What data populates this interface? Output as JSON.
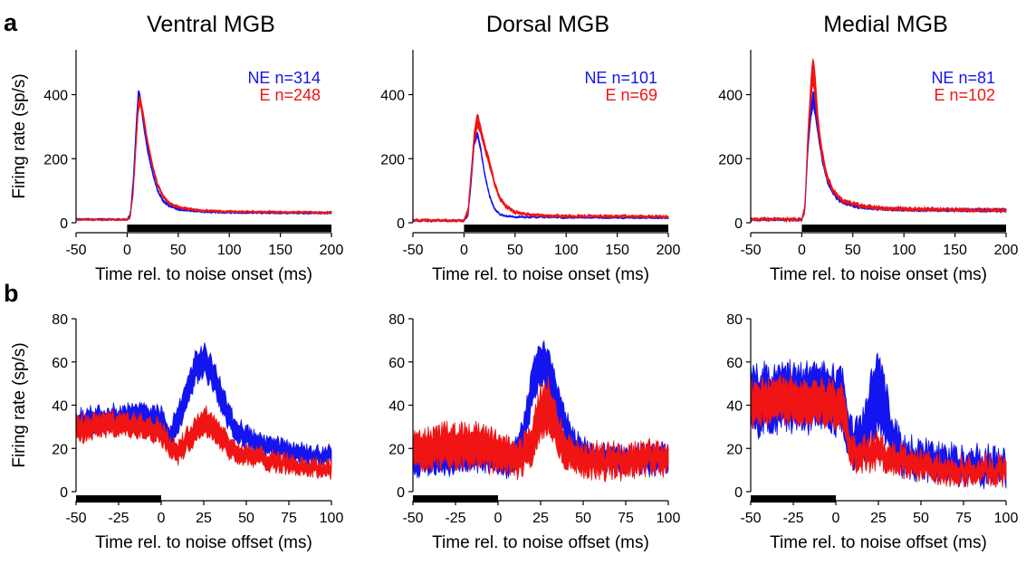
{
  "panel_labels": [
    "a",
    "b"
  ],
  "colors": {
    "NE": "#1414f0",
    "E": "#f01414",
    "stim": "#000000"
  },
  "chart_data": [
    {
      "type": "area",
      "row": "a",
      "title": "Ventral MGB",
      "xlabel": "Time rel. to noise onset (ms)",
      "ylabel": "Firing rate (sp/s)",
      "xlim": [
        -50,
        200
      ],
      "ylim": [
        0,
        540
      ],
      "xticks": [
        -50,
        0,
        50,
        100,
        150,
        200
      ],
      "yticks": [
        0,
        200,
        400
      ],
      "stimulus": [
        0,
        200
      ],
      "legend": [
        "NE n=314",
        "E n=248"
      ],
      "series": [
        {
          "color": "NE",
          "noise": 2,
          "x": [
            -50,
            0,
            3,
            6,
            9,
            11,
            13,
            16,
            20,
            25,
            30,
            35,
            40,
            50,
            60,
            80,
            100,
            150,
            200
          ],
          "lower": [
            9,
            9,
            20,
            120,
            300,
            380,
            370,
            300,
            220,
            150,
            95,
            65,
            52,
            40,
            36,
            32,
            30,
            29,
            29
          ],
          "upper": [
            12,
            12,
            26,
            140,
            320,
            420,
            395,
            320,
            235,
            160,
            102,
            72,
            58,
            45,
            40,
            36,
            34,
            33,
            33
          ]
        },
        {
          "color": "E",
          "noise": 2,
          "x": [
            -50,
            0,
            3,
            6,
            9,
            11,
            13,
            16,
            20,
            25,
            30,
            35,
            40,
            50,
            60,
            80,
            100,
            150,
            200
          ],
          "lower": [
            8,
            8,
            15,
            90,
            250,
            350,
            370,
            320,
            245,
            170,
            112,
            80,
            60,
            46,
            40,
            35,
            33,
            31,
            30
          ],
          "upper": [
            11,
            11,
            20,
            105,
            275,
            385,
            395,
            340,
            260,
            182,
            122,
            88,
            67,
            52,
            45,
            39,
            37,
            35,
            34
          ]
        }
      ]
    },
    {
      "type": "area",
      "row": "a",
      "title": "Dorsal MGB",
      "xlabel": "Time rel. to noise onset (ms)",
      "ylabel": "",
      "xlim": [
        -50,
        200
      ],
      "ylim": [
        0,
        540
      ],
      "xticks": [
        -50,
        0,
        50,
        100,
        150,
        200
      ],
      "yticks": [
        0,
        200,
        400
      ],
      "stimulus": [
        0,
        200
      ],
      "legend": [
        "NE n=101",
        "E n=69"
      ],
      "series": [
        {
          "color": "NE",
          "noise": 2,
          "x": [
            -50,
            0,
            4,
            7,
            10,
            13,
            16,
            20,
            25,
            30,
            35,
            40,
            50,
            60,
            80,
            100,
            150,
            200
          ],
          "lower": [
            5,
            5,
            20,
            120,
            240,
            270,
            230,
            150,
            80,
            40,
            25,
            20,
            17,
            16,
            16,
            15,
            14,
            14
          ],
          "upper": [
            8,
            8,
            25,
            130,
            255,
            285,
            245,
            160,
            88,
            45,
            28,
            23,
            20,
            19,
            18,
            17,
            16,
            16
          ]
        },
        {
          "color": "E",
          "noise": 3,
          "x": [
            -50,
            0,
            4,
            7,
            10,
            13,
            16,
            20,
            25,
            30,
            35,
            40,
            50,
            60,
            80,
            100,
            150,
            200
          ],
          "lower": [
            5,
            5,
            30,
            140,
            250,
            300,
            280,
            230,
            175,
            115,
            72,
            50,
            30,
            24,
            20,
            19,
            18,
            17
          ],
          "upper": [
            9,
            9,
            45,
            165,
            285,
            345,
            305,
            250,
            195,
            128,
            82,
            58,
            36,
            29,
            25,
            23,
            22,
            21
          ]
        }
      ]
    },
    {
      "type": "area",
      "row": "a",
      "title": "Medial MGB",
      "xlabel": "Time rel. to noise onset (ms)",
      "ylabel": "",
      "xlim": [
        -50,
        200
      ],
      "ylim": [
        0,
        540
      ],
      "xticks": [
        -50,
        0,
        50,
        100,
        150,
        200
      ],
      "yticks": [
        0,
        200,
        400
      ],
      "stimulus": [
        0,
        200
      ],
      "legend": [
        "NE n=81",
        "E n=102"
      ],
      "series": [
        {
          "color": "NE",
          "noise": 3,
          "x": [
            -50,
            0,
            3,
            6,
            9,
            11,
            13,
            16,
            20,
            25,
            30,
            35,
            40,
            50,
            60,
            80,
            100,
            150,
            200
          ],
          "lower": [
            8,
            8,
            30,
            220,
            330,
            360,
            340,
            270,
            190,
            125,
            92,
            72,
            60,
            50,
            44,
            40,
            38,
            37,
            36
          ],
          "upper": [
            12,
            12,
            40,
            250,
            370,
            410,
            395,
            310,
            215,
            140,
            102,
            80,
            66,
            56,
            50,
            46,
            44,
            43,
            42
          ]
        },
        {
          "color": "E",
          "noise": 4,
          "x": [
            -50,
            0,
            3,
            6,
            9,
            11,
            13,
            16,
            20,
            25,
            30,
            35,
            40,
            50,
            60,
            80,
            100,
            150,
            200
          ],
          "lower": [
            8,
            8,
            40,
            250,
            380,
            440,
            390,
            290,
            200,
            135,
            100,
            80,
            66,
            55,
            48,
            42,
            40,
            38,
            36
          ],
          "upper": [
            12,
            12,
            55,
            290,
            450,
            520,
            470,
            330,
            225,
            150,
            110,
            88,
            73,
            62,
            55,
            48,
            46,
            43,
            41
          ]
        }
      ]
    },
    {
      "type": "area",
      "row": "b",
      "title": "",
      "xlabel": "Time rel. to noise offset (ms)",
      "ylabel": "Firing rate (sp/s)",
      "xlim": [
        -50,
        100
      ],
      "ylim": [
        0,
        80
      ],
      "xticks": [
        -50,
        -25,
        0,
        25,
        50,
        75,
        100
      ],
      "yticks": [
        0,
        20,
        40,
        60,
        80
      ],
      "stimulus": [
        -50,
        0
      ],
      "legend": [],
      "series": [
        {
          "color": "NE",
          "noise": 2.5,
          "x": [
            -50,
            -40,
            -30,
            -20,
            -10,
            0,
            5,
            10,
            15,
            20,
            25,
            30,
            35,
            40,
            45,
            50,
            60,
            70,
            80,
            90,
            100
          ],
          "lower": [
            28,
            30,
            31,
            31,
            32,
            30,
            20,
            28,
            40,
            52,
            55,
            50,
            40,
            30,
            25,
            22,
            18,
            16,
            15,
            14,
            14
          ],
          "upper": [
            35,
            37,
            38,
            38,
            39,
            37,
            28,
            38,
            50,
            62,
            66,
            60,
            50,
            38,
            32,
            28,
            24,
            22,
            20,
            19,
            19
          ]
        },
        {
          "color": "E",
          "noise": 2.5,
          "x": [
            -50,
            -40,
            -30,
            -20,
            -10,
            0,
            5,
            10,
            15,
            20,
            25,
            30,
            35,
            40,
            45,
            50,
            60,
            70,
            80,
            90,
            100
          ],
          "lower": [
            25,
            27,
            28,
            27,
            27,
            24,
            18,
            15,
            20,
            25,
            28,
            26,
            22,
            17,
            15,
            14,
            13,
            11,
            10,
            9,
            9
          ],
          "upper": [
            33,
            34,
            35,
            34,
            34,
            31,
            24,
            21,
            27,
            33,
            37,
            35,
            30,
            24,
            21,
            19,
            18,
            16,
            14,
            13,
            13
          ]
        }
      ]
    },
    {
      "type": "area",
      "row": "b",
      "title": "",
      "xlabel": "Time rel. to noise offset (ms)",
      "ylabel": "",
      "xlim": [
        -50,
        100
      ],
      "ylim": [
        0,
        80
      ],
      "xticks": [
        -50,
        -25,
        0,
        25,
        50,
        75,
        100
      ],
      "yticks": [
        0,
        20,
        40,
        60,
        80
      ],
      "stimulus": [
        -50,
        0
      ],
      "legend": [],
      "series": [
        {
          "color": "NE",
          "noise": 3,
          "x": [
            -50,
            -40,
            -30,
            -20,
            -10,
            0,
            5,
            10,
            15,
            20,
            25,
            30,
            35,
            40,
            45,
            50,
            60,
            70,
            80,
            90,
            100
          ],
          "lower": [
            10,
            11,
            11,
            12,
            12,
            11,
            10,
            12,
            22,
            40,
            52,
            48,
            35,
            25,
            18,
            15,
            12,
            10,
            11,
            11,
            12
          ],
          "upper": [
            18,
            19,
            19,
            20,
            20,
            19,
            18,
            21,
            32,
            55,
            68,
            62,
            48,
            34,
            26,
            22,
            19,
            18,
            18,
            19,
            20
          ]
        },
        {
          "color": "E",
          "noise": 4,
          "x": [
            -50,
            -40,
            -30,
            -20,
            -10,
            0,
            5,
            10,
            15,
            20,
            25,
            30,
            35,
            40,
            45,
            50,
            60,
            70,
            80,
            90,
            100
          ],
          "lower": [
            13,
            14,
            15,
            15,
            14,
            13,
            12,
            10,
            12,
            16,
            28,
            30,
            20,
            14,
            12,
            11,
            10,
            10,
            11,
            12,
            12
          ],
          "upper": [
            24,
            26,
            28,
            28,
            27,
            25,
            22,
            20,
            23,
            30,
            45,
            48,
            34,
            25,
            21,
            19,
            18,
            18,
            19,
            20,
            20
          ]
        }
      ]
    },
    {
      "type": "area",
      "row": "b",
      "title": "",
      "xlabel": "Time rel. to noise offset (ms)",
      "ylabel": "",
      "xlim": [
        -50,
        100
      ],
      "ylim": [
        0,
        80
      ],
      "xticks": [
        -50,
        -25,
        0,
        25,
        50,
        75,
        100
      ],
      "yticks": [
        0,
        20,
        40,
        60,
        80
      ],
      "stimulus": [
        -50,
        0
      ],
      "legend": [],
      "series": [
        {
          "color": "NE",
          "noise": 5,
          "x": [
            -50,
            -40,
            -30,
            -20,
            -10,
            0,
            5,
            8,
            12,
            16,
            20,
            24,
            28,
            32,
            36,
            40,
            50,
            60,
            70,
            80,
            90,
            100
          ],
          "lower": [
            30,
            32,
            33,
            33,
            33,
            32,
            28,
            16,
            16,
            18,
            25,
            32,
            28,
            18,
            14,
            12,
            10,
            9,
            9,
            8,
            8,
            8
          ],
          "upper": [
            52,
            54,
            55,
            55,
            55,
            54,
            50,
            30,
            30,
            35,
            48,
            62,
            52,
            34,
            26,
            22,
            19,
            18,
            17,
            16,
            16,
            16
          ]
        },
        {
          "color": "E",
          "noise": 4,
          "x": [
            -50,
            -40,
            -30,
            -20,
            -10,
            0,
            5,
            8,
            12,
            16,
            20,
            24,
            28,
            32,
            36,
            40,
            50,
            60,
            70,
            80,
            90,
            100
          ],
          "lower": [
            34,
            35,
            36,
            35,
            35,
            33,
            30,
            14,
            13,
            13,
            14,
            15,
            14,
            12,
            11,
            10,
            9,
            8,
            7,
            7,
            7,
            6
          ],
          "upper": [
            48,
            49,
            50,
            49,
            49,
            47,
            44,
            22,
            21,
            21,
            22,
            23,
            22,
            20,
            18,
            17,
            15,
            14,
            13,
            12,
            12,
            12
          ]
        }
      ]
    }
  ]
}
